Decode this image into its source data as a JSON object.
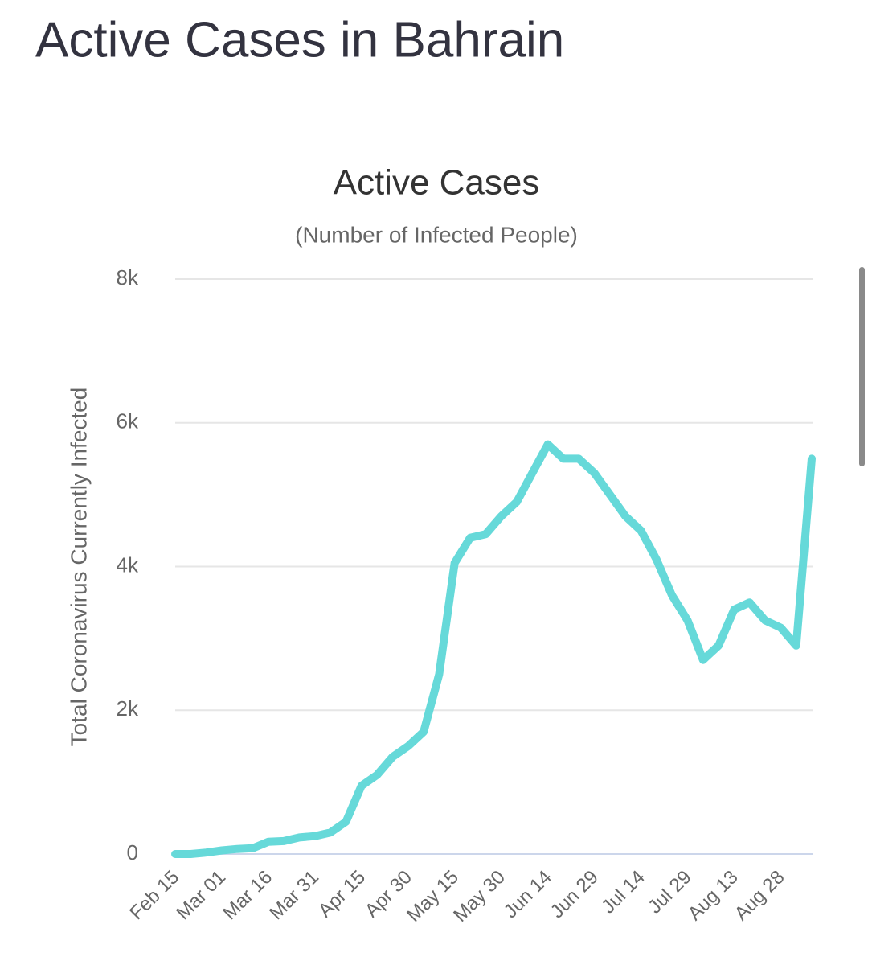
{
  "header": {
    "title": "Active Cases in Bahrain"
  },
  "chart_data": {
    "type": "line",
    "title": "Active Cases",
    "subtitle": "(Number of Infected People)",
    "y_label": "Total Coronavirus Currently Infected",
    "categories": [
      "Feb 15",
      null,
      null,
      "Mar 01",
      null,
      null,
      "Mar 16",
      null,
      null,
      "Mar 31",
      null,
      null,
      "Apr 15",
      null,
      null,
      "Apr 30",
      null,
      null,
      "May 15",
      null,
      null,
      "May 30",
      null,
      null,
      "Jun 14",
      null,
      null,
      "Jun 29",
      null,
      null,
      "Jul 14",
      null,
      null,
      "Jul 29",
      null,
      null,
      "Aug 13",
      null,
      null,
      "Aug 28",
      null,
      null
    ],
    "values": [
      0,
      0,
      20,
      50,
      70,
      80,
      170,
      180,
      230,
      250,
      300,
      450,
      950,
      1100,
      1350,
      1500,
      1700,
      2500,
      4050,
      4400,
      4450,
      4700,
      4900,
      5300,
      5700,
      5500,
      5500,
      5300,
      5000,
      4700,
      4500,
      4100,
      3600,
      3250,
      2700,
      2900,
      3400,
      3500,
      3250,
      3150,
      2900,
      5500
    ],
    "color": "#66d9d9",
    "ylim": [
      0,
      8000
    ],
    "yticks": [
      0,
      {
        "value": 2000,
        "label": "2k"
      },
      {
        "value": 4000,
        "label": "4k"
      },
      {
        "value": 6000,
        "label": "6k"
      },
      {
        "value": 8000,
        "label": "8k"
      }
    ],
    "grid": true
  }
}
